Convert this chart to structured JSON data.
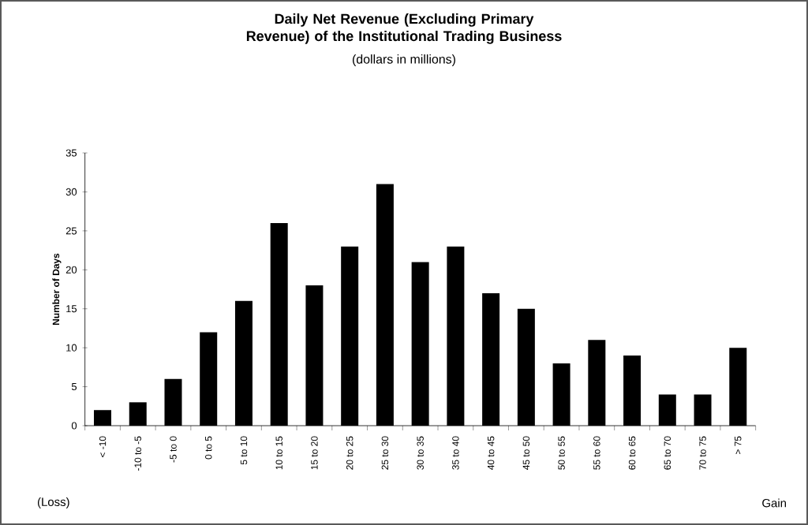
{
  "chart_data": {
    "type": "bar",
    "title": "Daily Net Revenue (Excluding Primary Revenue) of the Institutional Trading Business",
    "subtitle": "(dollars in millions)",
    "ylabel": "Number of Days",
    "categories": [
      "< -10",
      "-10 to -5",
      "-5 to 0",
      "0 to 5",
      "5 to 10",
      "10 to 15",
      "15 to 20",
      "20 to 25",
      "25 to 30",
      "30 to 35",
      "35 to 40",
      "40 to 45",
      "45 to 50",
      "50 to 55",
      "55 to 60",
      "60 to 65",
      "65 to 70",
      "70 to 75",
      "> 75"
    ],
    "values": [
      2,
      3,
      6,
      12,
      16,
      26,
      18,
      23,
      31,
      21,
      23,
      17,
      15,
      8,
      11,
      9,
      4,
      4,
      10
    ],
    "color": "#000000",
    "ylim": [
      0,
      35
    ],
    "yticks": [
      0,
      5,
      10,
      15,
      20,
      25,
      30,
      35
    ],
    "annotations": [
      "(Loss)",
      "Gain"
    ]
  }
}
